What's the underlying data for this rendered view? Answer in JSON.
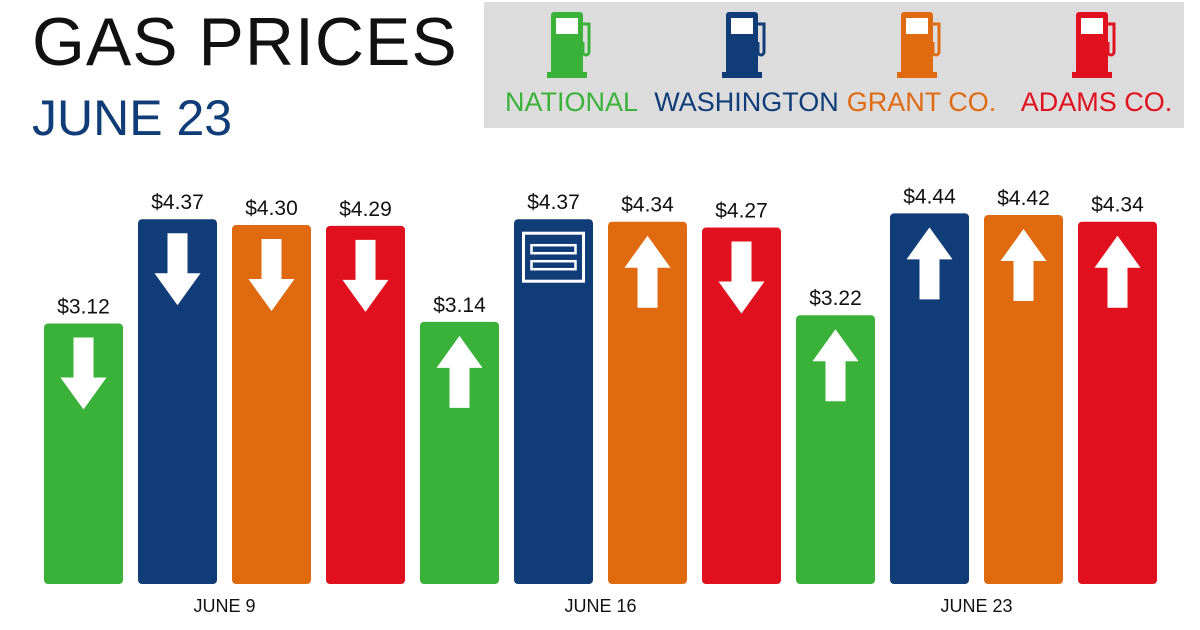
{
  "header": {
    "title": "GAS PRICES",
    "subtitle": "JUNE 23"
  },
  "legend": [
    {
      "label": "NATIONAL",
      "color": "#3ab23a",
      "icon": "gas-pump-icon"
    },
    {
      "label": "WASHINGTON",
      "color": "#103c78",
      "icon": "gas-pump-icon"
    },
    {
      "label": "GRANT CO.",
      "color": "#e06a10",
      "icon": "gas-pump-icon"
    },
    {
      "label": "ADAMS CO.",
      "color": "#e0101e",
      "icon": "gas-pump-icon"
    }
  ],
  "chart_data": {
    "type": "bar",
    "categories": [
      "JUNE 9",
      "JUNE 16",
      "JUNE 23"
    ],
    "ylim": [
      0,
      4.6
    ],
    "grid": false,
    "legend_position": "top-right",
    "series": [
      {
        "name": "NATIONAL",
        "color": "#3ab23a",
        "values": [
          3.12,
          3.14,
          3.22
        ],
        "labels": [
          "$3.12",
          "$3.14",
          "$3.22"
        ],
        "trend": [
          "down",
          "up",
          "up"
        ]
      },
      {
        "name": "WASHINGTON",
        "color": "#103c78",
        "values": [
          4.37,
          4.37,
          4.44
        ],
        "labels": [
          "$4.37",
          "$4.37",
          "$4.44"
        ],
        "trend": [
          "down",
          "same",
          "up"
        ]
      },
      {
        "name": "GRANT CO.",
        "color": "#e06a10",
        "values": [
          4.3,
          4.34,
          4.42
        ],
        "labels": [
          "$4.30",
          "$4.34",
          "$4.42"
        ],
        "trend": [
          "down",
          "up",
          "up"
        ]
      },
      {
        "name": "ADAMS CO.",
        "color": "#e0101e",
        "values": [
          4.29,
          4.27,
          4.34
        ],
        "labels": [
          "$4.29",
          "$4.27",
          "$4.34"
        ],
        "trend": [
          "down",
          "down",
          "up"
        ]
      }
    ]
  }
}
